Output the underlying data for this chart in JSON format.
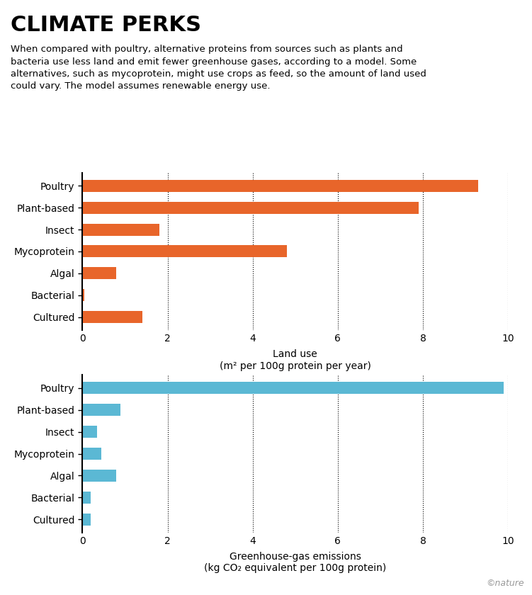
{
  "title": "CLIMATE PERKS",
  "subtitle": "When compared with poultry, alternative proteins from sources such as plants and\nbacteria use less land and emit fewer greenhouse gases, according to a model. Some\nalternatives, such as mycoprotein, might use crops as feed, so the amount of land used\ncould vary. The model assumes renewable energy use.",
  "categories": [
    "Poultry",
    "Plant-based",
    "Insect",
    "Mycoprotein",
    "Algal",
    "Bacterial",
    "Cultured"
  ],
  "land_use": [
    9.3,
    7.9,
    1.8,
    4.8,
    0.8,
    0.05,
    1.4
  ],
  "ghg_emissions": [
    9.9,
    0.9,
    0.35,
    0.45,
    0.8,
    0.2,
    0.2
  ],
  "land_color": "#E8652A",
  "ghg_color": "#5BB8D4",
  "land_xlabel": "Land use",
  "land_xlabel2": "(m² per 100g protein per year)",
  "ghg_xlabel": "Greenhouse-gas emissions",
  "ghg_xlabel2": "(kg CO₂ equivalent per 100g protein)",
  "xlim": [
    0,
    10
  ],
  "xticks": [
    0,
    2,
    4,
    6,
    8,
    10
  ],
  "nature_credit": "©nature",
  "background_color": "#ffffff",
  "bar_height": 0.55,
  "title_fontsize": 22,
  "subtitle_fontsize": 9.5,
  "label_fontsize": 10,
  "tick_fontsize": 10
}
